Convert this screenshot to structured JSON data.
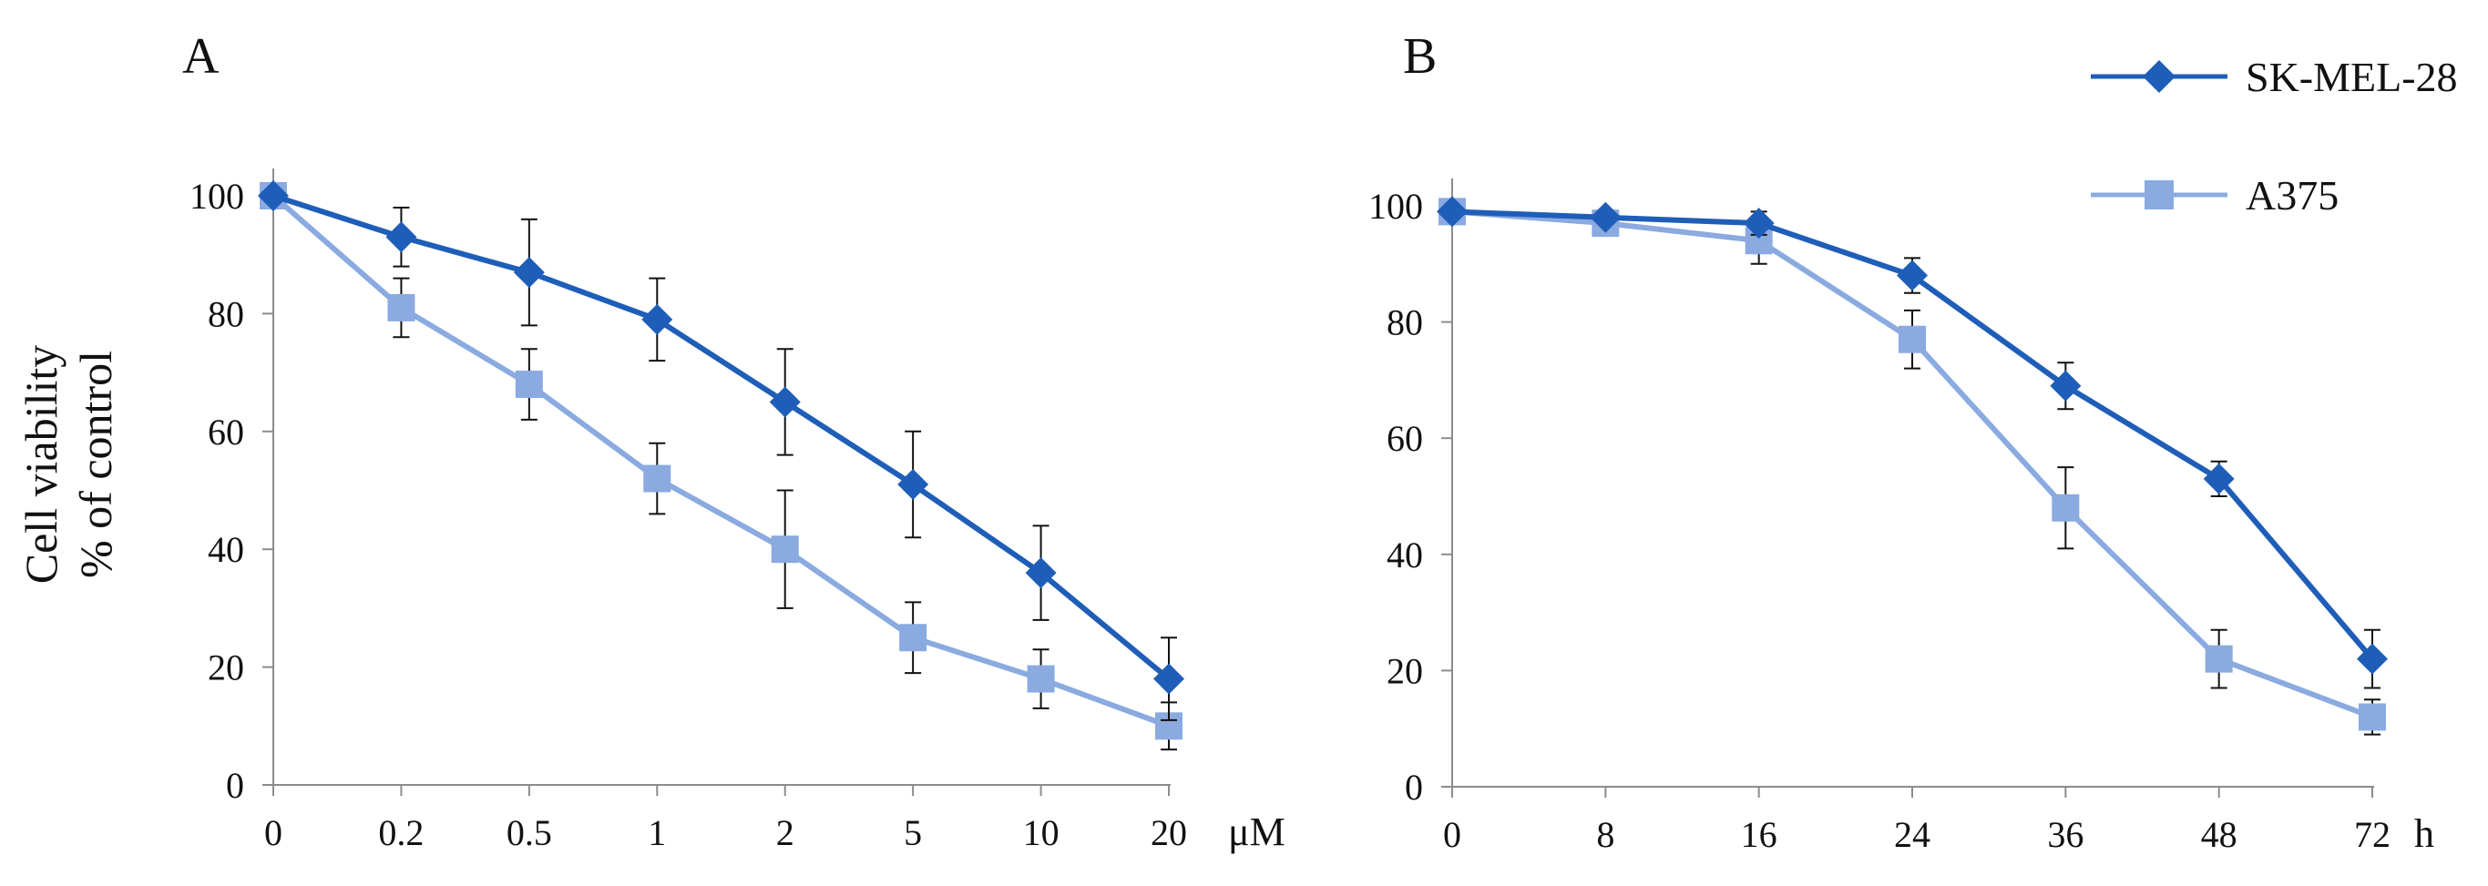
{
  "colors": {
    "sk_mel_28": "#1f5eb8",
    "a375": "#8aaae0",
    "axis": "#8c8c8c",
    "error_bar": "#111111"
  },
  "ylabel": [
    "Cell viability",
    "% of control"
  ],
  "legend": [
    {
      "name": "SK-MEL-28",
      "marker": "diamond"
    },
    {
      "name": "A375",
      "marker": "square"
    }
  ],
  "chart_data": [
    {
      "type": "line",
      "panel": "A",
      "x_unit": "μM",
      "categories": [
        "0",
        "0.2",
        "0.5",
        "1",
        "2",
        "5",
        "10",
        "20"
      ],
      "ylim": [
        0,
        100
      ],
      "yticks": [
        0,
        20,
        40,
        60,
        80,
        100
      ],
      "series": [
        {
          "name": "SK-MEL-28",
          "values": [
            100,
            93,
            87,
            79,
            65,
            51,
            36,
            18
          ],
          "errors": [
            0,
            5,
            9,
            7,
            9,
            9,
            8,
            7
          ]
        },
        {
          "name": "A375",
          "values": [
            100,
            81,
            68,
            52,
            40,
            25,
            18,
            10
          ],
          "errors": [
            0,
            5,
            6,
            6,
            10,
            6,
            5,
            4
          ]
        }
      ]
    },
    {
      "type": "line",
      "panel": "B",
      "x_unit": "h",
      "categories": [
        "0",
        "8",
        "16",
        "24",
        "36",
        "48",
        "72"
      ],
      "ylim": [
        0,
        100
      ],
      "yticks": [
        0,
        20,
        40,
        60,
        80,
        100
      ],
      "series": [
        {
          "name": "SK-MEL-28",
          "values": [
            99,
            98,
            97,
            88,
            69,
            53,
            22
          ],
          "errors": [
            0,
            0,
            2,
            3,
            4,
            3,
            5
          ]
        },
        {
          "name": "A375",
          "values": [
            99,
            97,
            94,
            77,
            48,
            22,
            12
          ],
          "errors": [
            0,
            0,
            4,
            5,
            7,
            5,
            3
          ]
        }
      ]
    }
  ]
}
